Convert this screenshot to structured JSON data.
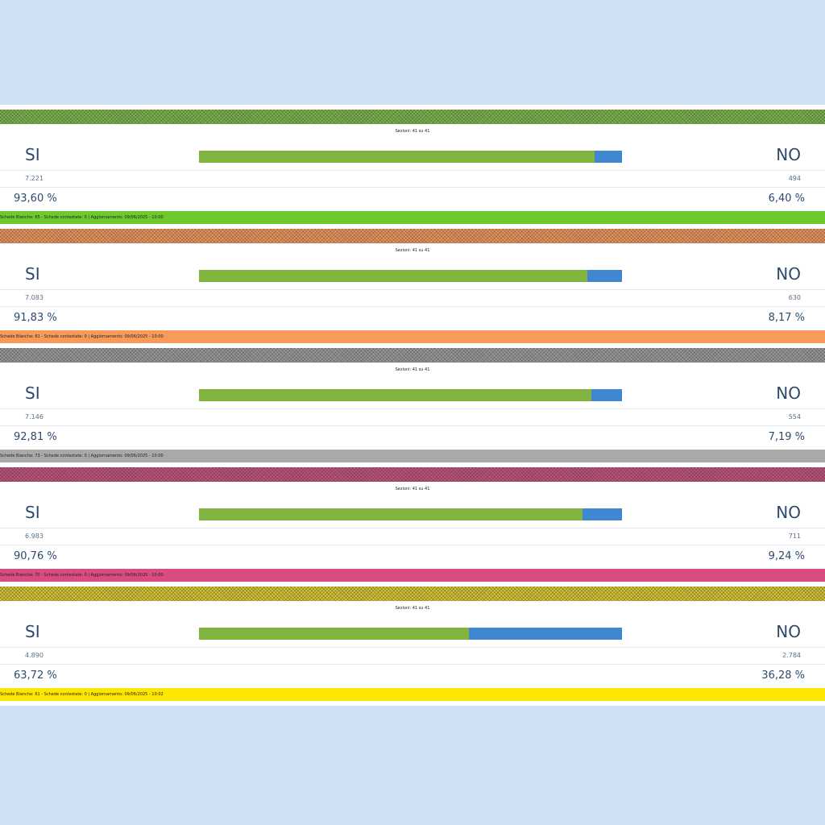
{
  "panels": [
    {
      "header_color": "#7ab648",
      "footer_color": "#6cc92e",
      "sections": "Sezioni: 41 su 41",
      "yes_label": "SI",
      "no_label": "NO",
      "yes_votes": {
        "value": 7221,
        "label": "7.221"
      },
      "no_votes": {
        "value": 494,
        "label": "494"
      },
      "yes_pct": {
        "value": 93.6,
        "label": "93,60 %"
      },
      "no_pct": {
        "value": 6.4,
        "label": "6,40 %"
      },
      "footer": "Schede Bianche: 65 - Schede contestate: 0 | Aggiornamento: 09/06/2025 - 10:00"
    },
    {
      "header_color": "#f0955a",
      "footer_color": "#f79a5a",
      "sections": "Sezioni: 41 su 41",
      "yes_label": "SI",
      "no_label": "NO",
      "yes_votes": {
        "value": 7083,
        "label": "7.083"
      },
      "no_votes": {
        "value": 630,
        "label": "630"
      },
      "yes_pct": {
        "value": 91.83,
        "label": "91,83 %"
      },
      "no_pct": {
        "value": 8.17,
        "label": "8,17 %"
      },
      "footer": "Schede Bianche: 61 - Schede contestate: 0 | Aggiornamento: 09/06/2025 - 10:00"
    },
    {
      "header_color": "#9a9a9a",
      "footer_color": "#a9a9a9",
      "sections": "Sezioni: 41 su 41",
      "yes_label": "SI",
      "no_label": "NO",
      "yes_votes": {
        "value": 7146,
        "label": "7.146"
      },
      "no_votes": {
        "value": 554,
        "label": "554"
      },
      "yes_pct": {
        "value": 92.81,
        "label": "92,81 %"
      },
      "no_pct": {
        "value": 7.19,
        "label": "7,19 %"
      },
      "footer": "Schede Bianche: 73 - Schede contestate: 0 | Aggiornamento: 09/06/2025 - 10:00"
    },
    {
      "header_color": "#c0507a",
      "footer_color": "#d94c80",
      "sections": "Sezioni: 41 su 41",
      "yes_label": "SI",
      "no_label": "NO",
      "yes_votes": {
        "value": 6983,
        "label": "6.983"
      },
      "no_votes": {
        "value": 711,
        "label": "711"
      },
      "yes_pct": {
        "value": 90.76,
        "label": "90,76 %"
      },
      "no_pct": {
        "value": 9.24,
        "label": "9,24 %"
      },
      "footer": "Schede Bianche: 70 - Schede contestate: 0 | Aggiornamento: 09/06/2025 - 10:00"
    },
    {
      "header_color": "#d8c830",
      "footer_color": "#ffe600",
      "sections": "Sezioni: 41 su 41",
      "yes_label": "SI",
      "no_label": "NO",
      "yes_votes": {
        "value": 4890,
        "label": "4.890"
      },
      "no_votes": {
        "value": 2784,
        "label": "2.784"
      },
      "yes_pct": {
        "value": 63.72,
        "label": "63,72 %"
      },
      "no_pct": {
        "value": 36.28,
        "label": "36,28 %"
      },
      "footer": "Schede Bianche: 61 - Schede contestate: 0 | Aggiornamento: 09/06/2025 - 10:02"
    }
  ]
}
